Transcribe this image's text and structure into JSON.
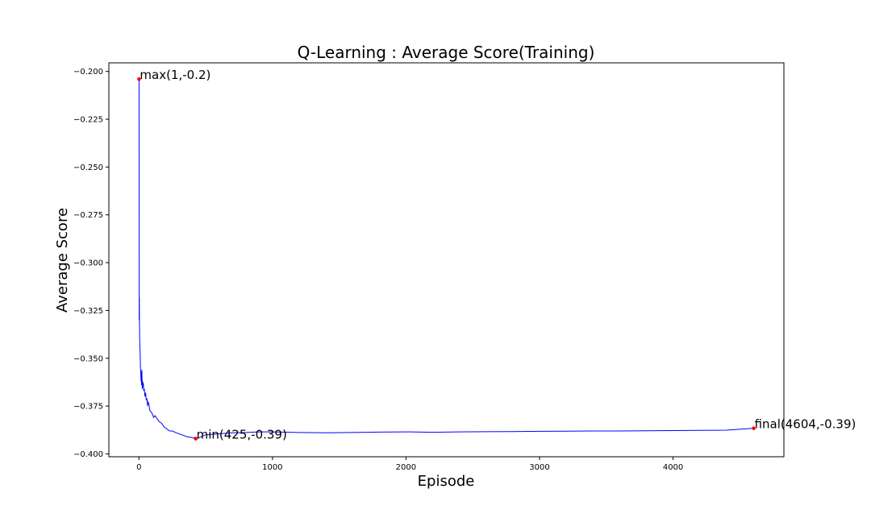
{
  "chart_data": {
    "type": "line",
    "title": "Q-Learning : Average Score(Training)",
    "xlabel": "Episode",
    "ylabel": "Average Score",
    "xlim": [
      -225,
      4830
    ],
    "ylim": [
      -0.4015,
      -0.1955
    ],
    "x_ticks": [
      0,
      1000,
      2000,
      3000,
      4000
    ],
    "x_tick_labels": [
      "0",
      "1000",
      "2000",
      "3000",
      "4000"
    ],
    "y_ticks": [
      -0.2,
      -0.225,
      -0.25,
      -0.275,
      -0.3,
      -0.325,
      -0.35,
      -0.375,
      -0.4
    ],
    "y_tick_labels": [
      "−0.200",
      "−0.225",
      "−0.250",
      "−0.275",
      "−0.300",
      "−0.325",
      "−0.350",
      "−0.375",
      "−0.400"
    ],
    "grid": false,
    "line_color": "#0000ff",
    "marker_color": "#ff0000",
    "series": [
      {
        "x": [
          1,
          2,
          3,
          4,
          5,
          6,
          8,
          10,
          12,
          14,
          16,
          18,
          20,
          22,
          25,
          28,
          30,
          33,
          36,
          40,
          45,
          50,
          55,
          60,
          65,
          70,
          75,
          80,
          90,
          100,
          110,
          120,
          130,
          140,
          150,
          170,
          190,
          210,
          230,
          250,
          280,
          320,
          360,
          400,
          425,
          450,
          500,
          600,
          700,
          800,
          900,
          1000,
          1200,
          1400,
          1600,
          1800,
          2000,
          2200,
          2400,
          2600,
          2800,
          3000,
          3200,
          3400,
          3600,
          3800,
          4000,
          4200,
          4400,
          4604
        ],
        "y": [
          -0.204,
          -0.33,
          -0.318,
          -0.33,
          -0.335,
          -0.34,
          -0.345,
          -0.35,
          -0.355,
          -0.358,
          -0.362,
          -0.357,
          -0.364,
          -0.356,
          -0.366,
          -0.362,
          -0.365,
          -0.363,
          -0.367,
          -0.366,
          -0.37,
          -0.368,
          -0.372,
          -0.371,
          -0.375,
          -0.373,
          -0.374,
          -0.377,
          -0.378,
          -0.379,
          -0.381,
          -0.38,
          -0.381,
          -0.382,
          -0.383,
          -0.384,
          -0.386,
          -0.387,
          -0.388,
          -0.388,
          -0.389,
          -0.39,
          -0.391,
          -0.3915,
          -0.392,
          -0.3915,
          -0.39,
          -0.3895,
          -0.389,
          -0.3888,
          -0.3885,
          -0.3885,
          -0.3888,
          -0.389,
          -0.3888,
          -0.3886,
          -0.3885,
          -0.3887,
          -0.3885,
          -0.3884,
          -0.3883,
          -0.3882,
          -0.3881,
          -0.388,
          -0.388,
          -0.3879,
          -0.3878,
          -0.3877,
          -0.3876,
          -0.3866
        ]
      }
    ],
    "annotations": [
      {
        "x": 1,
        "y": -0.204,
        "text": "max(1,-0.2)"
      },
      {
        "x": 425,
        "y": -0.392,
        "text": "min(425,-0.39)"
      },
      {
        "x": 4604,
        "y": -0.3866,
        "text": "final(4604,-0.39)"
      }
    ]
  }
}
